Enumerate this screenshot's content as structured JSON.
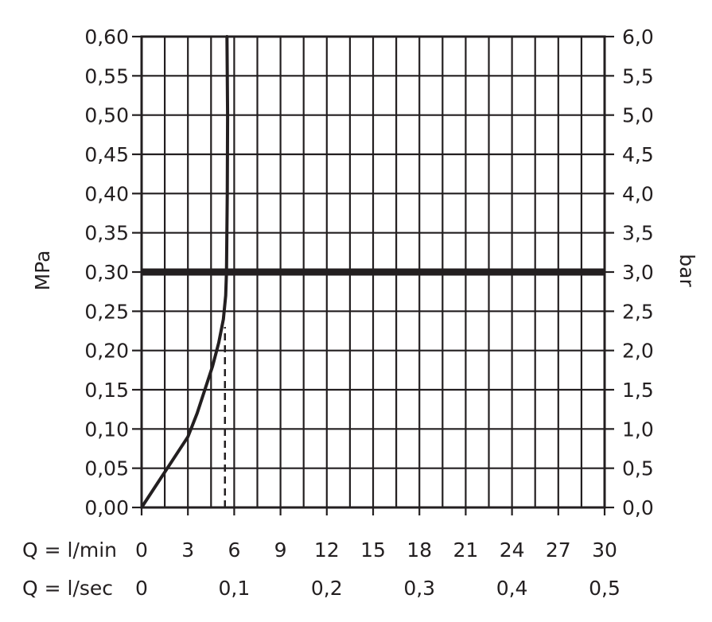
{
  "chart_data": {
    "type": "line",
    "ylabel_left": "MPa",
    "ylabel_right": "bar",
    "y_ticks_left": [
      "0,00",
      "0,05",
      "0,10",
      "0,15",
      "0,20",
      "0,25",
      "0,30",
      "0,35",
      "0,40",
      "0,45",
      "0,50",
      "0,55",
      "0,60"
    ],
    "y_ticks_right": [
      "0,0",
      "0,5",
      "1,0",
      "1,5",
      "2,0",
      "2,5",
      "3,0",
      "3,5",
      "4,0",
      "4,5",
      "5,0",
      "5,5",
      "6,0"
    ],
    "ylim": [
      0,
      0.6
    ],
    "x_row1_label": "Q = l/min",
    "x_ticks_lmin": [
      "0",
      "3",
      "6",
      "9",
      "12",
      "15",
      "18",
      "21",
      "24",
      "27",
      "30"
    ],
    "x_row2_label": "Q = l/sec",
    "x_ticks_lsec": [
      "0",
      "0,1",
      "0,2",
      "0,3",
      "0,4",
      "0,5"
    ],
    "xlim_lmin": [
      0,
      30
    ],
    "grid": true,
    "series": [
      {
        "x": [
          0,
          1,
          2,
          3,
          3.6,
          4.1,
          4.6,
          5.0,
          5.3,
          5.45,
          5.5,
          5.55,
          5.57,
          5.55,
          5.53
        ],
        "y": [
          0,
          0.03,
          0.06,
          0.09,
          0.12,
          0.15,
          0.18,
          0.21,
          0.24,
          0.27,
          0.3,
          0.4,
          0.5,
          0.55,
          0.6
        ],
        "style": "solid"
      }
    ],
    "reference_line": {
      "y": 0.3,
      "style": "thick"
    },
    "marker_line": {
      "x": 5.4,
      "y_max": 0.23,
      "style": "dashed"
    }
  }
}
